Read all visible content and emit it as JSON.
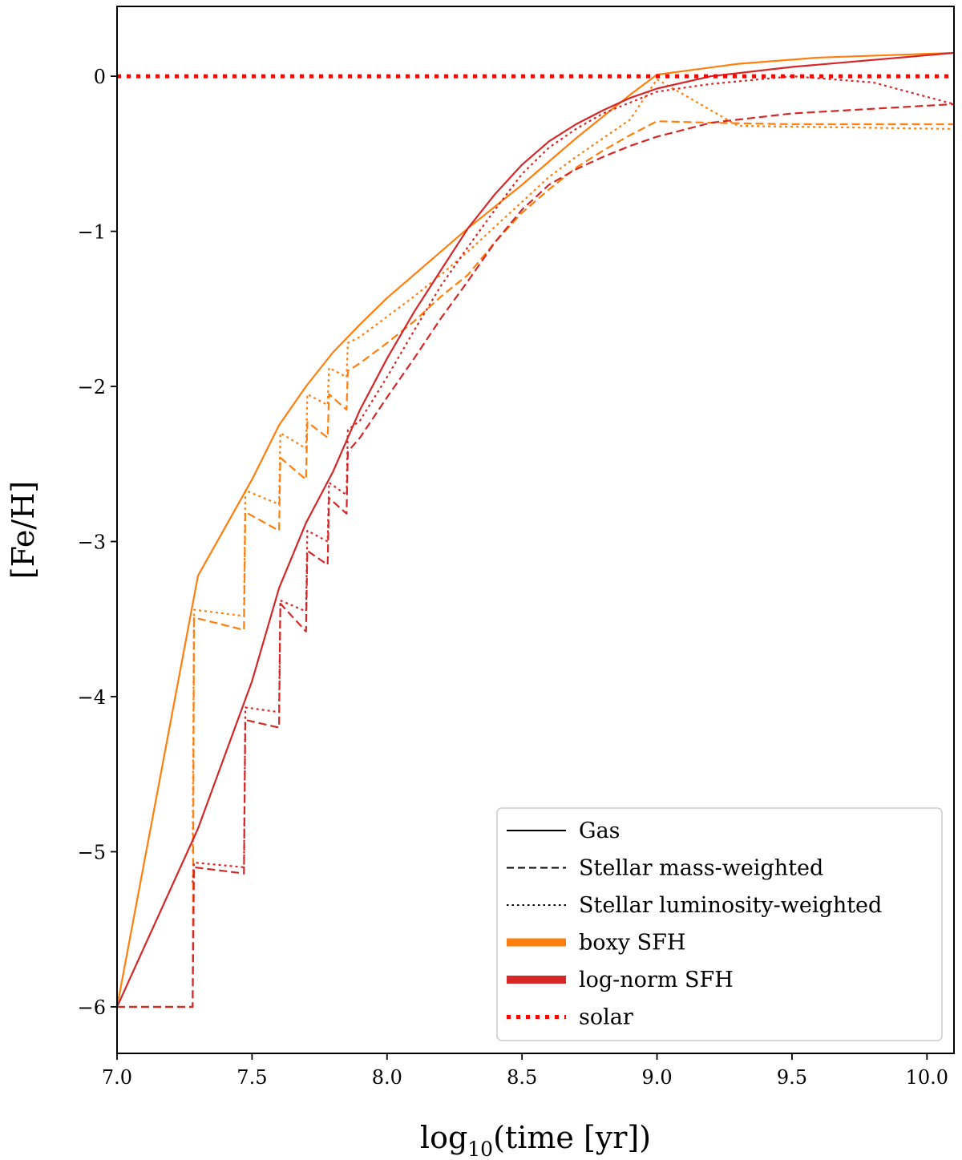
{
  "chart_data": {
    "type": "line",
    "title": "",
    "xlabel": "log10(time [yr])",
    "xlabel_base": "log",
    "xlabel_sub": "10",
    "xlabel_rest": "(time [yr])",
    "ylabel": "[Fe/H]",
    "xlim": [
      7.0,
      10.1
    ],
    "ylim": [
      -6.3,
      0.45
    ],
    "xticks": [
      7.0,
      7.5,
      8.0,
      8.5,
      9.0,
      9.5,
      10.0
    ],
    "xtick_labels": [
      "7.0",
      "7.5",
      "8.0",
      "8.5",
      "9.0",
      "9.5",
      "10.0"
    ],
    "yticks": [
      0,
      -1,
      -2,
      -3,
      -4,
      -5,
      -6
    ],
    "ytick_labels": [
      "0",
      "−1",
      "−2",
      "−3",
      "−4",
      "−5",
      "−6"
    ],
    "grid": false,
    "legend_position": "lower-right",
    "colors": {
      "boxy": "#ff7f0e",
      "lognorm": "#d62728",
      "solar": "#ff0000"
    },
    "legend": [
      {
        "label": "Gas",
        "style": "solid",
        "color": "#000000"
      },
      {
        "label": "Stellar mass-weighted",
        "style": "dashed",
        "color": "#000000"
      },
      {
        "label": "Stellar luminosity-weighted",
        "style": "dotted",
        "color": "#000000"
      },
      {
        "label": "boxy SFH",
        "style": "thick",
        "color": "#ff7f0e"
      },
      {
        "label": "log-norm SFH",
        "style": "thick",
        "color": "#d62728"
      },
      {
        "label": "solar",
        "style": "dotted-thick",
        "color": "#ff0000"
      }
    ],
    "solar_value": 0,
    "series": [
      {
        "name": "boxy SFH gas",
        "sfh": "boxy",
        "kind": "gas",
        "x": [
          7.0,
          7.3,
          7.5,
          7.6,
          7.7,
          7.8,
          7.9,
          8.0,
          8.1,
          8.2,
          8.3,
          8.4,
          8.5,
          8.6,
          8.7,
          8.8,
          8.9,
          9.0,
          9.3,
          9.6,
          10.1
        ],
        "y": [
          -6.0,
          -3.22,
          -2.6,
          -2.25,
          -2.0,
          -1.78,
          -1.6,
          -1.43,
          -1.28,
          -1.13,
          -0.98,
          -0.84,
          -0.7,
          -0.55,
          -0.4,
          -0.26,
          -0.12,
          0.01,
          0.08,
          0.12,
          0.15
        ]
      },
      {
        "name": "boxy SFH stellar mass-weighted",
        "sfh": "boxy",
        "kind": "mass",
        "x": [
          7.0,
          7.28,
          7.285,
          7.47,
          7.475,
          7.6,
          7.605,
          7.7,
          7.705,
          7.78,
          7.785,
          7.85,
          7.855,
          7.9,
          8.0,
          8.1,
          8.2,
          8.3,
          8.4,
          8.5,
          8.6,
          8.7,
          8.8,
          8.9,
          9.0,
          9.2,
          9.5,
          10.1
        ],
        "y": [
          -6.0,
          -6.0,
          -3.49,
          -3.57,
          -2.81,
          -2.93,
          -2.46,
          -2.6,
          -2.23,
          -2.33,
          -2.05,
          -2.15,
          -1.9,
          -1.85,
          -1.72,
          -1.58,
          -1.42,
          -1.28,
          -1.07,
          -0.88,
          -0.73,
          -0.59,
          -0.48,
          -0.38,
          -0.29,
          -0.3,
          -0.31,
          -0.31
        ]
      },
      {
        "name": "boxy SFH stellar luminosity-weighted",
        "sfh": "boxy",
        "kind": "lum",
        "x": [
          7.28,
          7.285,
          7.47,
          7.475,
          7.6,
          7.605,
          7.7,
          7.705,
          7.78,
          7.785,
          7.85,
          7.855,
          7.9,
          8.0,
          8.1,
          8.2,
          8.3,
          8.4,
          8.5,
          8.6,
          8.7,
          8.8,
          8.9,
          9.0,
          9.3,
          10.1
        ],
        "y": [
          -5.0,
          -3.44,
          -3.48,
          -2.67,
          -2.76,
          -2.3,
          -2.4,
          -2.05,
          -2.12,
          -1.88,
          -1.94,
          -1.72,
          -1.68,
          -1.55,
          -1.42,
          -1.28,
          -1.13,
          -0.97,
          -0.81,
          -0.65,
          -0.52,
          -0.4,
          -0.28,
          -0.02,
          -0.32,
          -0.34
        ]
      },
      {
        "name": "log-norm SFH gas",
        "sfh": "lognorm",
        "kind": "gas",
        "x": [
          7.0,
          7.3,
          7.5,
          7.6,
          7.7,
          7.8,
          7.9,
          8.0,
          8.1,
          8.2,
          8.3,
          8.4,
          8.5,
          8.6,
          8.7,
          8.8,
          8.9,
          9.0,
          9.2,
          9.5,
          10.1
        ],
        "y": [
          -6.0,
          -4.85,
          -3.9,
          -3.3,
          -2.88,
          -2.55,
          -2.15,
          -1.82,
          -1.52,
          -1.25,
          -0.98,
          -0.76,
          -0.57,
          -0.42,
          -0.31,
          -0.22,
          -0.14,
          -0.08,
          0.0,
          0.06,
          0.15
        ]
      },
      {
        "name": "log-norm SFH stellar mass-weighted",
        "sfh": "lognorm",
        "kind": "mass",
        "x": [
          7.0,
          7.28,
          7.285,
          7.47,
          7.475,
          7.6,
          7.605,
          7.7,
          7.705,
          7.78,
          7.785,
          7.85,
          7.855,
          7.9,
          8.0,
          8.1,
          8.2,
          8.3,
          8.4,
          8.5,
          8.6,
          8.7,
          8.8,
          8.9,
          9.0,
          9.2,
          9.5,
          10.1
        ],
        "y": [
          -6.0,
          -6.0,
          -5.1,
          -5.14,
          -4.15,
          -4.2,
          -3.4,
          -3.58,
          -3.06,
          -3.15,
          -2.72,
          -2.82,
          -2.42,
          -2.33,
          -2.07,
          -1.82,
          -1.56,
          -1.32,
          -1.07,
          -0.86,
          -0.7,
          -0.6,
          -0.52,
          -0.45,
          -0.39,
          -0.3,
          -0.24,
          -0.18
        ]
      },
      {
        "name": "log-norm SFH stellar luminosity-weighted",
        "sfh": "lognorm",
        "kind": "lum",
        "x": [
          7.28,
          7.285,
          7.47,
          7.475,
          7.6,
          7.605,
          7.7,
          7.705,
          7.78,
          7.785,
          7.85,
          7.855,
          7.9,
          8.0,
          8.1,
          8.2,
          8.3,
          8.4,
          8.5,
          8.6,
          8.7,
          8.8,
          8.9,
          9.0,
          9.2,
          9.5,
          9.8,
          10.1
        ],
        "y": [
          -5.2,
          -5.07,
          -5.1,
          -4.07,
          -4.1,
          -3.38,
          -3.45,
          -2.93,
          -3.0,
          -2.62,
          -2.7,
          -2.28,
          -2.22,
          -1.94,
          -1.64,
          -1.35,
          -1.1,
          -0.86,
          -0.63,
          -0.46,
          -0.34,
          -0.24,
          -0.17,
          -0.1,
          -0.05,
          0.0,
          -0.04,
          -0.18
        ]
      }
    ]
  }
}
